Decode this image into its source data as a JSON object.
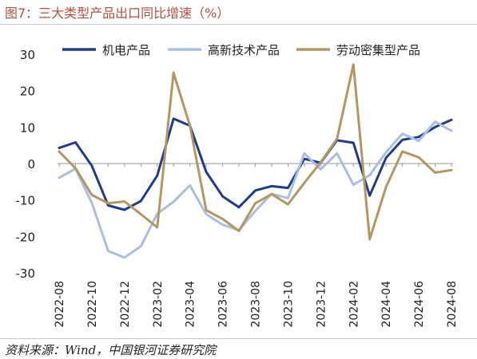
{
  "title": "图7：三大类型产品出口同比增速（%）",
  "source": "资料来源：Wind，中国银河证券研究院",
  "chart_data": {
    "type": "line",
    "title": "图7：三大类型产品出口同比增速（%）",
    "xlabel": "",
    "ylabel": "",
    "ylim": [
      -30,
      30
    ],
    "yticks": [
      -30,
      -20,
      -10,
      0,
      10,
      20,
      30
    ],
    "grid": false,
    "legend_position": "top",
    "x_tick_labels": [
      "2022-08",
      "2022-10",
      "2022-12",
      "2023-02",
      "2023-04",
      "2023-06",
      "2023-08",
      "2023-10",
      "2023-12",
      "2024-02",
      "2024-04",
      "2024-06",
      "2024-08"
    ],
    "x": [
      "2022-08",
      "2022-09",
      "2022-10",
      "2022-11",
      "2022-12",
      "2023-01",
      "2023-02",
      "2023-03",
      "2023-04",
      "2023-05",
      "2023-06",
      "2023-07",
      "2023-08",
      "2023-09",
      "2023-10",
      "2023-11",
      "2023-12",
      "2024-01",
      "2024-02",
      "2024-03",
      "2024-04",
      "2024-05",
      "2024-06",
      "2024-07",
      "2024-08"
    ],
    "series": [
      {
        "name": "机电产品",
        "color": "#1f3c8c",
        "values": [
          4.3,
          5.8,
          -0.6,
          -11.5,
          -12.7,
          -10.3,
          -3.3,
          12.3,
          10.4,
          -2.3,
          -9.0,
          -12.0,
          -7.4,
          -6.2,
          -6.7,
          1.3,
          0.2,
          6.4,
          5.7,
          -8.8,
          1.6,
          6.5,
          7.3,
          10.0,
          12.0
        ]
      },
      {
        "name": "高新技术产品",
        "color": "#a7bfe4",
        "values": [
          -3.9,
          -1.4,
          -10.8,
          -24.0,
          -25.8,
          -22.7,
          -13.8,
          -10.5,
          -6.0,
          -13.9,
          -16.8,
          -18.3,
          -13.0,
          -8.3,
          -9.5,
          2.8,
          -1.6,
          2.8,
          -5.8,
          -3.2,
          3.1,
          8.2,
          6.2,
          11.5,
          9.0
        ]
      },
      {
        "name": "劳动密集型产品",
        "color": "#b59560",
        "values": [
          3.3,
          -1.3,
          -8.6,
          -10.9,
          -10.4,
          -13.9,
          -17.5,
          24.9,
          10.4,
          -12.8,
          -15.2,
          -18.5,
          -10.9,
          -8.4,
          -11.2,
          -5.3,
          0.3,
          6.8,
          27.2,
          -20.8,
          -6.4,
          3.3,
          1.7,
          -2.5,
          -1.8
        ]
      }
    ]
  }
}
